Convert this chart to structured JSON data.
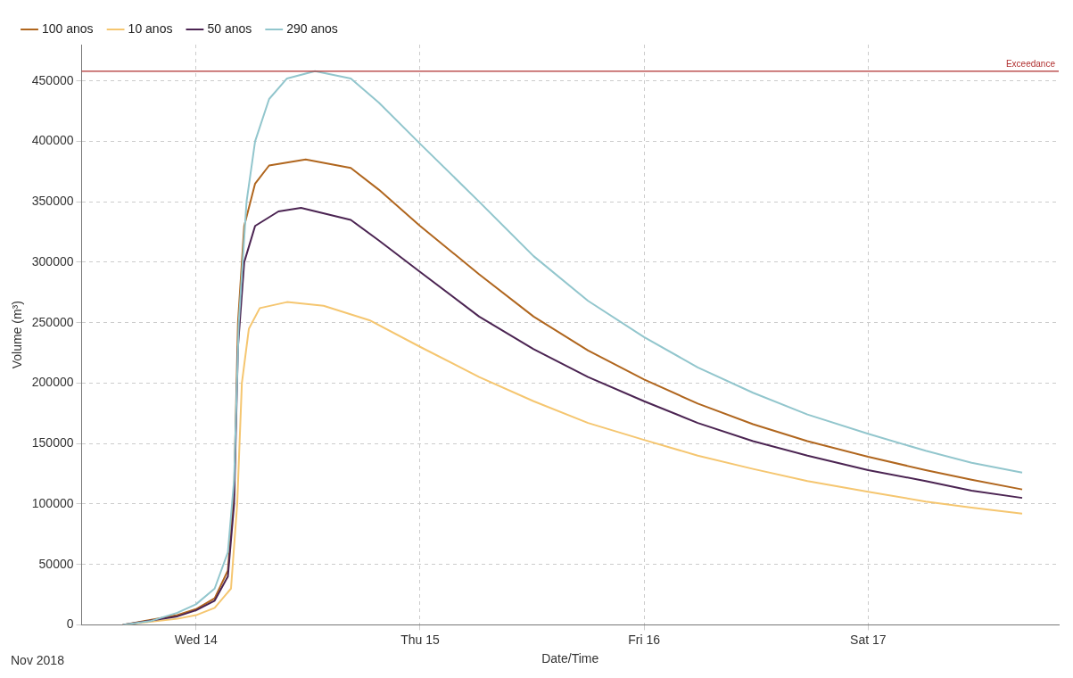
{
  "chart_data": {
    "type": "line",
    "xlabel": "Date/Time",
    "ylabel": "Volume (m³)",
    "annotations": [
      "Nov 2018"
    ],
    "xlim": [
      "2018-11-13T11:45",
      "2018-11-17T20:25"
    ],
    "xticks": [
      {
        "value": "2018-11-14T00:00",
        "label": "Wed 14"
      },
      {
        "value": "2018-11-15T00:00",
        "label": "Thu 15"
      },
      {
        "value": "2018-11-16T00:00",
        "label": "Fri 16"
      },
      {
        "value": "2018-11-17T00:00",
        "label": "Sat 17"
      }
    ],
    "ylim": [
      0,
      480000
    ],
    "yticks": [
      0,
      50000,
      100000,
      150000,
      200000,
      250000,
      300000,
      350000,
      400000,
      450000
    ],
    "grid": true,
    "legend": "top left",
    "marker": "none",
    "line_style": "solid",
    "ref_lines": [
      {
        "axis": "y",
        "value": 458000,
        "label": "Exceedance",
        "color": "#b03030"
      }
    ],
    "series": [
      {
        "name": "100 anos",
        "color": "#b0661e",
        "x": [
          "2018-11-13T16:10",
          "2018-11-13T22:00",
          "2018-11-14T00:00",
          "2018-11-14T02:00",
          "2018-11-14T03:25",
          "2018-11-14T04:05",
          "2018-11-14T04:30",
          "2018-11-14T05:10",
          "2018-11-14T06:20",
          "2018-11-14T07:50",
          "2018-11-14T11:45",
          "2018-11-14T16:35",
          "2018-11-14T19:35",
          "2018-11-15T00:00",
          "2018-11-15T06:20",
          "2018-11-15T12:10",
          "2018-11-15T18:00",
          "2018-11-16T00:00",
          "2018-11-16T05:45",
          "2018-11-16T11:40",
          "2018-11-16T17:30",
          "2018-11-17T00:00",
          "2018-11-17T06:10",
          "2018-11-17T11:05",
          "2018-11-17T16:30"
        ],
        "values": [
          0,
          8000,
          13000,
          22000,
          45000,
          110000,
          250000,
          330000,
          365000,
          380000,
          385000,
          378000,
          360000,
          330000,
          290000,
          255000,
          227000,
          203000,
          183000,
          166000,
          152000,
          139000,
          128000,
          120000,
          112000
        ]
      },
      {
        "name": "10 anos",
        "color": "#f5c670",
        "x": [
          "2018-11-13T16:10",
          "2018-11-13T22:00",
          "2018-11-14T00:00",
          "2018-11-14T02:00",
          "2018-11-14T03:45",
          "2018-11-14T04:25",
          "2018-11-14T04:55",
          "2018-11-14T05:40",
          "2018-11-14T06:50",
          "2018-11-14T09:45",
          "2018-11-14T13:40",
          "2018-11-14T18:35",
          "2018-11-15T00:00",
          "2018-11-15T06:20",
          "2018-11-15T12:10",
          "2018-11-15T18:00",
          "2018-11-16T00:00",
          "2018-11-16T05:45",
          "2018-11-16T11:40",
          "2018-11-16T17:30",
          "2018-11-17T00:00",
          "2018-11-17T06:10",
          "2018-11-17T11:05",
          "2018-11-17T16:30"
        ],
        "values": [
          0,
          5000,
          8000,
          14000,
          30000,
          100000,
          200000,
          245000,
          262000,
          267000,
          264000,
          252000,
          230000,
          205000,
          185000,
          167000,
          153000,
          140000,
          129000,
          119000,
          110000,
          102000,
          97000,
          92000
        ]
      },
      {
        "name": "50 anos",
        "color": "#4b2452",
        "x": [
          "2018-11-13T16:10",
          "2018-11-13T22:00",
          "2018-11-14T00:00",
          "2018-11-14T02:00",
          "2018-11-14T03:25",
          "2018-11-14T04:05",
          "2018-11-14T04:30",
          "2018-11-14T05:10",
          "2018-11-14T06:20",
          "2018-11-14T08:50",
          "2018-11-14T11:15",
          "2018-11-14T16:35",
          "2018-11-14T19:35",
          "2018-11-15T00:00",
          "2018-11-15T06:20",
          "2018-11-15T12:10",
          "2018-11-15T18:00",
          "2018-11-16T00:00",
          "2018-11-16T05:45",
          "2018-11-16T11:40",
          "2018-11-16T17:30",
          "2018-11-17T00:00",
          "2018-11-17T06:10",
          "2018-11-17T11:05",
          "2018-11-17T16:30"
        ],
        "values": [
          0,
          7000,
          12000,
          20000,
          40000,
          100000,
          230000,
          300000,
          330000,
          342000,
          345000,
          335000,
          318000,
          292000,
          255000,
          228000,
          205000,
          185000,
          167000,
          152000,
          140000,
          128000,
          119000,
          111000,
          105000
        ]
      },
      {
        "name": "290 anos",
        "color": "#92c6cd",
        "x": [
          "2018-11-13T16:10",
          "2018-11-13T19:05",
          "2018-11-13T22:00",
          "2018-11-14T00:00",
          "2018-11-14T02:00",
          "2018-11-14T03:25",
          "2018-11-14T04:05",
          "2018-11-14T04:35",
          "2018-11-14T05:25",
          "2018-11-14T06:20",
          "2018-11-14T07:50",
          "2018-11-14T09:45",
          "2018-11-14T12:45",
          "2018-11-14T16:35",
          "2018-11-14T19:35",
          "2018-11-15T00:00",
          "2018-11-15T06:20",
          "2018-11-15T12:10",
          "2018-11-15T18:00",
          "2018-11-16T00:00",
          "2018-11-16T05:45",
          "2018-11-16T11:40",
          "2018-11-16T17:30",
          "2018-11-17T00:00",
          "2018-11-17T06:10",
          "2018-11-17T11:05",
          "2018-11-17T16:30"
        ],
        "values": [
          0,
          3000,
          10000,
          17000,
          30000,
          60000,
          120000,
          250000,
          350000,
          400000,
          435000,
          452000,
          458000,
          452000,
          432000,
          398000,
          350000,
          305000,
          268000,
          238000,
          213000,
          192000,
          174000,
          158000,
          144000,
          134000,
          126000
        ]
      }
    ]
  }
}
